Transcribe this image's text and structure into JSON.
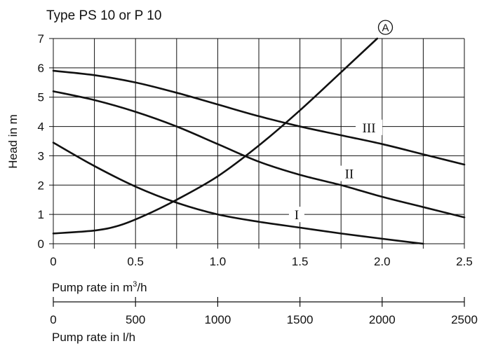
{
  "chart_data": {
    "type": "line",
    "title": "Type PS 10 or P 10",
    "ylabel": "Head in m",
    "xlabel": "Pump rate in m³/h",
    "xlabel_main": "Pump rate in m",
    "xlabel_sup": "3",
    "xlabel_tail": "/h",
    "xlabel_secondary": "Pump rate in l/h",
    "xlim": [
      0,
      2.5
    ],
    "ylim": [
      0,
      7
    ],
    "x_ticks": [
      "0",
      "0.5",
      "1.0",
      "1.5",
      "2.0",
      "2.5"
    ],
    "y_ticks": [
      "0",
      "1",
      "2",
      "3",
      "4",
      "5",
      "6",
      "7"
    ],
    "x_ticks_secondary": [
      "0",
      "500",
      "1000",
      "1500",
      "2000",
      "2500"
    ],
    "x_ticks_secondary_values": [
      0,
      500,
      1000,
      1500,
      2000,
      2500
    ],
    "secondary_max": 2500,
    "grid": true,
    "series": [
      {
        "name": "I",
        "label_at": [
          1.48,
          1.0
        ],
        "x": [
          0,
          0.25,
          0.5,
          0.75,
          1.0,
          1.25,
          1.5,
          1.75,
          2.0,
          2.25
        ],
        "y": [
          3.45,
          2.65,
          1.95,
          1.4,
          1.0,
          0.75,
          0.55,
          0.35,
          0.17,
          0.0
        ]
      },
      {
        "name": "II",
        "label_at": [
          1.8,
          2.4
        ],
        "x": [
          0,
          0.25,
          0.5,
          0.75,
          1.0,
          1.25,
          1.5,
          1.75,
          2.0,
          2.25,
          2.5
        ],
        "y": [
          5.2,
          4.9,
          4.5,
          4.0,
          3.4,
          2.8,
          2.35,
          2.0,
          1.6,
          1.25,
          0.9
        ]
      },
      {
        "name": "III",
        "label_at": [
          1.92,
          3.97
        ],
        "x": [
          0,
          0.25,
          0.5,
          0.75,
          1.0,
          1.25,
          1.5,
          1.75,
          2.0,
          2.25,
          2.5
        ],
        "y": [
          5.9,
          5.75,
          5.5,
          5.15,
          4.75,
          4.35,
          4.0,
          3.7,
          3.4,
          3.05,
          2.7
        ]
      },
      {
        "name": "A",
        "label_at": [
          2.02,
          7.38
        ],
        "x": [
          0,
          0.25,
          0.4,
          0.55,
          0.75,
          1.0,
          1.25,
          1.5,
          1.75,
          1.97
        ],
        "y": [
          0.35,
          0.45,
          0.62,
          0.95,
          1.5,
          2.3,
          3.35,
          4.55,
          5.85,
          7.0
        ]
      }
    ]
  }
}
